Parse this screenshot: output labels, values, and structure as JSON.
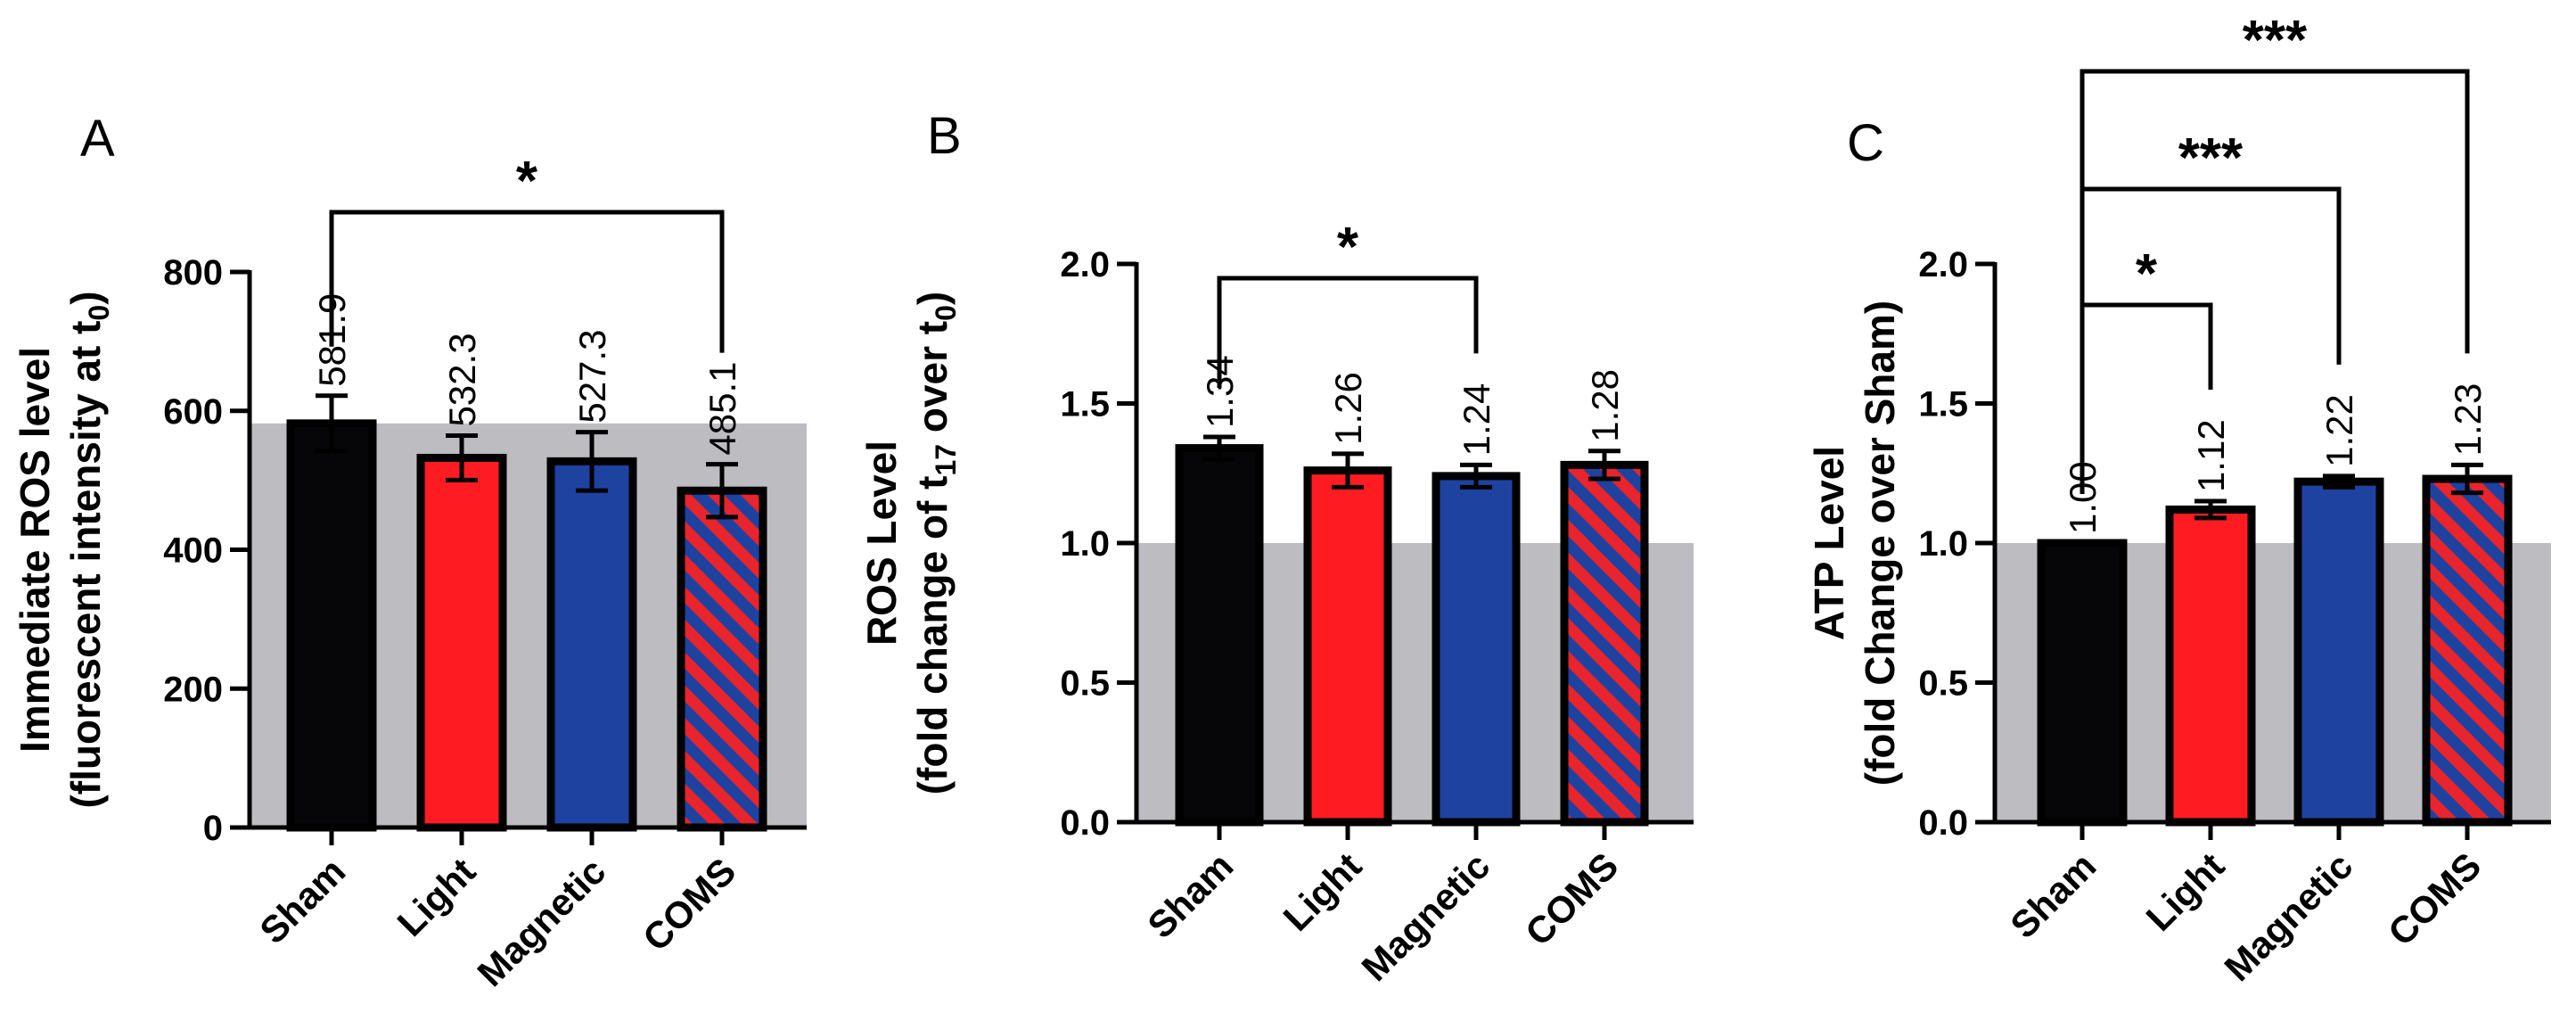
{
  "figure": {
    "colors": {
      "sham": "#060608",
      "light": "#fe1c22",
      "magnetic": "#1e42a0",
      "coms_a": "#1e42a0",
      "coms_b": "#e8242c",
      "reference_band": "#bdbdc1",
      "outline": "#000000"
    }
  },
  "chart_data": [
    {
      "panel": "A",
      "type": "bar",
      "ylabel_line1": "Immediate ROS level",
      "ylabel_line2": "(fluorescent intensity at t",
      "ylabel_sub": "0",
      "ylabel_close": ")",
      "categories": [
        "Sham",
        "Light",
        "Magnetic",
        "COMS"
      ],
      "values": [
        581.9,
        532.3,
        527.3,
        485.1
      ],
      "labels": [
        "581.9",
        "532.3",
        "527.3",
        "485.1"
      ],
      "errors": [
        40,
        32,
        42,
        38
      ],
      "ylim": [
        0,
        800
      ],
      "yticks": [
        0,
        200,
        400,
        600,
        800
      ],
      "tick_labels": [
        "0",
        "200",
        "400",
        "600",
        "800"
      ],
      "reference_value": 581.9,
      "significance": [
        {
          "from": 0,
          "to": 3,
          "label": "*"
        }
      ]
    },
    {
      "panel": "B",
      "type": "bar",
      "ylabel_line1": "ROS Level",
      "ylabel_line2": "(fold change of t",
      "ylabel_sub": "17",
      "ylabel_mid": " over t",
      "ylabel_sub2": "0",
      "ylabel_close": ")",
      "categories": [
        "Sham",
        "Light",
        "Magnetic",
        "COMS"
      ],
      "values": [
        1.34,
        1.26,
        1.24,
        1.28
      ],
      "labels": [
        "1.34",
        "1.26",
        "1.24",
        "1.28"
      ],
      "errors": [
        0.04,
        0.06,
        0.04,
        0.05
      ],
      "ylim": [
        0,
        2.0
      ],
      "yticks": [
        0,
        0.5,
        1.0,
        1.5,
        2.0
      ],
      "tick_labels": [
        "0.0",
        "0.5",
        "1.0",
        "1.5",
        "2.0"
      ],
      "reference_value": 1.0,
      "significance": [
        {
          "from": 0,
          "to": 2,
          "label": "*"
        }
      ]
    },
    {
      "panel": "C",
      "type": "bar",
      "ylabel_line1": "ATP Level",
      "ylabel_line2": "(fold Change over Sham)",
      "categories": [
        "Sham",
        "Light",
        "Magnetic",
        "COMS"
      ],
      "values": [
        1.0,
        1.12,
        1.22,
        1.23
      ],
      "labels": [
        "1.00",
        "1.12",
        "1.22",
        "1.23"
      ],
      "errors": [
        0,
        0.03,
        0.02,
        0.05
      ],
      "ylim": [
        0,
        2.0
      ],
      "yticks": [
        0,
        0.5,
        1.0,
        1.5,
        2.0
      ],
      "tick_labels": [
        "0.0",
        "0.5",
        "1.0",
        "1.5",
        "2.0"
      ],
      "reference_value": 1.0,
      "significance": [
        {
          "from": 0,
          "to": 1,
          "label": "*"
        },
        {
          "from": 0,
          "to": 2,
          "label": "***"
        },
        {
          "from": 0,
          "to": 3,
          "label": "***"
        }
      ]
    }
  ]
}
